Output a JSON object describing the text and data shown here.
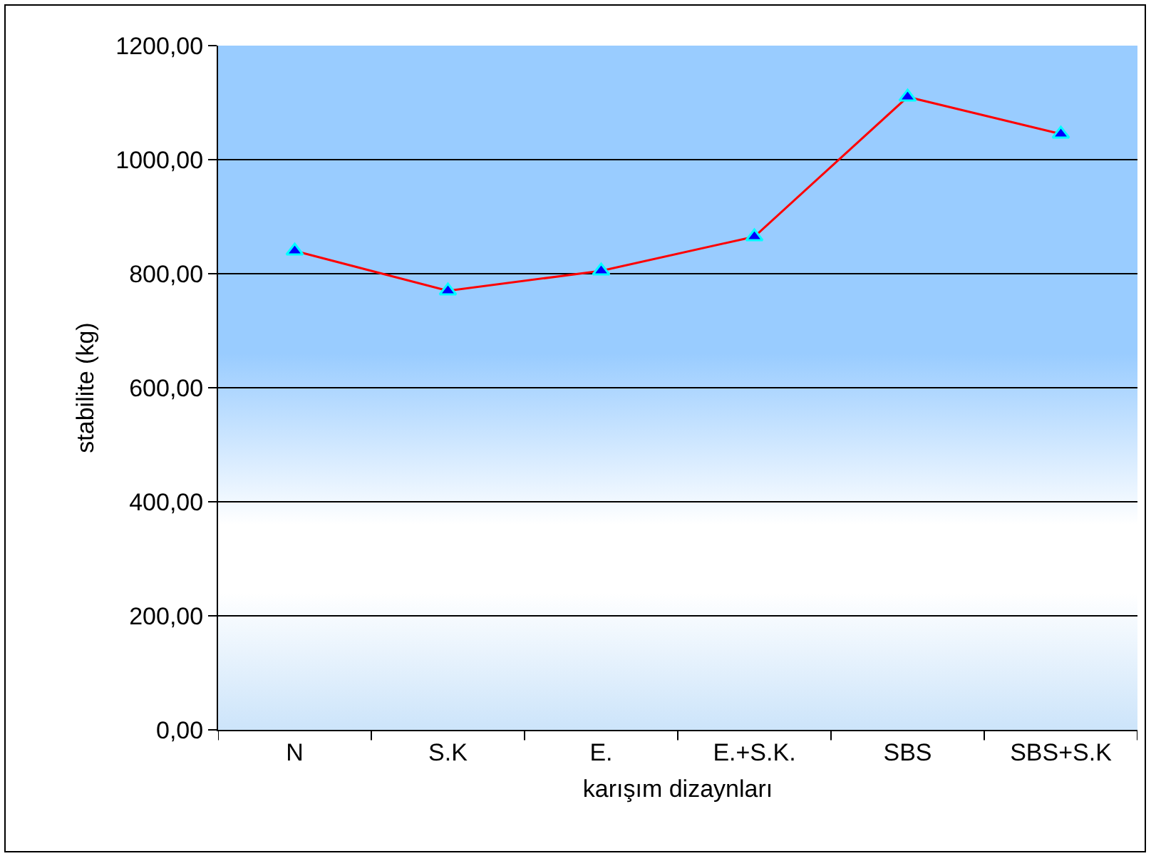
{
  "chart_data": {
    "type": "line",
    "xlabel": "karışım dizaynları",
    "ylabel": "stabilite (kg)",
    "categories": [
      "N",
      "S.K",
      "E.",
      "E.+S.K.",
      "SBS",
      "SBS+S.K"
    ],
    "series": [
      {
        "color": "#ff0000",
        "values": [
          840,
          770,
          805,
          865,
          1110,
          1045
        ]
      }
    ],
    "ylim": [
      0,
      1200
    ],
    "yticks": [
      {
        "value": 0,
        "label": "0,00"
      },
      {
        "value": 200,
        "label": "200,00"
      },
      {
        "value": 400,
        "label": "400,00"
      },
      {
        "value": 600,
        "label": "600,00"
      },
      {
        "value": 800,
        "label": "800,00"
      },
      {
        "value": 1000,
        "label": "1000,00"
      },
      {
        "value": 1200,
        "label": "1200,00"
      }
    ],
    "grid": "y",
    "marker": "triangle",
    "line_style": "solid"
  }
}
